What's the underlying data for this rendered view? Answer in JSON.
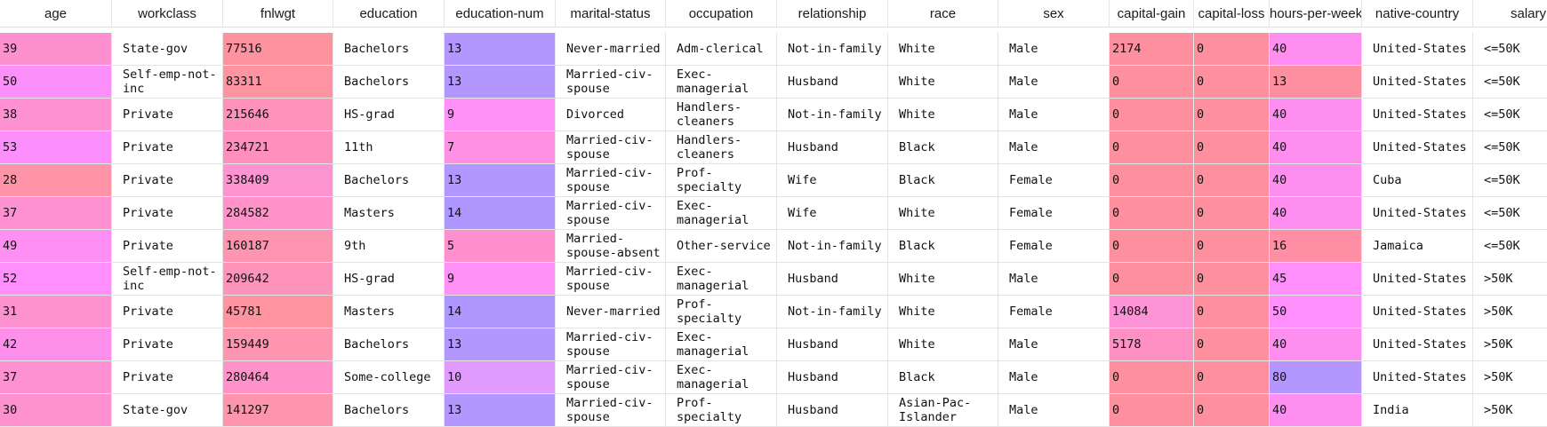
{
  "columns": [
    "age",
    "workclass",
    "fnlwgt",
    "education",
    "education-num",
    "marital-status",
    "occupation",
    "relationship",
    "race",
    "sex",
    "capital-gain",
    "capital-loss",
    "hours-per-week",
    "native-country",
    "salary"
  ],
  "numeric_columns": [
    "age",
    "fnlwgt",
    "education-num",
    "capital-gain",
    "capital-loss",
    "hours-per-week"
  ],
  "rows": [
    [
      "39",
      "State-gov",
      "77516",
      "Bachelors",
      "13",
      "Never-married",
      "Adm-clerical",
      "Not-in-family",
      "White",
      "Male",
      "2174",
      "0",
      "40",
      "United-States",
      "<=50K"
    ],
    [
      "50",
      "Self-emp-not-inc",
      "83311",
      "Bachelors",
      "13",
      "Married-civ-spouse",
      "Exec-managerial",
      "Husband",
      "White",
      "Male",
      "0",
      "0",
      "13",
      "United-States",
      "<=50K"
    ],
    [
      "38",
      "Private",
      "215646",
      "HS-grad",
      "9",
      "Divorced",
      "Handlers-cleaners",
      "Not-in-family",
      "White",
      "Male",
      "0",
      "0",
      "40",
      "United-States",
      "<=50K"
    ],
    [
      "53",
      "Private",
      "234721",
      "11th",
      "7",
      "Married-civ-spouse",
      "Handlers-cleaners",
      "Husband",
      "Black",
      "Male",
      "0",
      "0",
      "40",
      "United-States",
      "<=50K"
    ],
    [
      "28",
      "Private",
      "338409",
      "Bachelors",
      "13",
      "Married-civ-spouse",
      "Prof-specialty",
      "Wife",
      "Black",
      "Female",
      "0",
      "0",
      "40",
      "Cuba",
      "<=50K"
    ],
    [
      "37",
      "Private",
      "284582",
      "Masters",
      "14",
      "Married-civ-spouse",
      "Exec-managerial",
      "Wife",
      "White",
      "Female",
      "0",
      "0",
      "40",
      "United-States",
      "<=50K"
    ],
    [
      "49",
      "Private",
      "160187",
      "9th",
      "5",
      "Married-spouse-absent",
      "Other-service",
      "Not-in-family",
      "Black",
      "Female",
      "0",
      "0",
      "16",
      "Jamaica",
      "<=50K"
    ],
    [
      "52",
      "Self-emp-not-inc",
      "209642",
      "HS-grad",
      "9",
      "Married-civ-spouse",
      "Exec-managerial",
      "Husband",
      "White",
      "Male",
      "0",
      "0",
      "45",
      "United-States",
      ">50K"
    ],
    [
      "31",
      "Private",
      "45781",
      "Masters",
      "14",
      "Never-married",
      "Prof-specialty",
      "Not-in-family",
      "White",
      "Female",
      "14084",
      "0",
      "50",
      "United-States",
      ">50K"
    ],
    [
      "42",
      "Private",
      "159449",
      "Bachelors",
      "13",
      "Married-civ-spouse",
      "Exec-managerial",
      "Husband",
      "White",
      "Male",
      "5178",
      "0",
      "40",
      "United-States",
      ">50K"
    ],
    [
      "37",
      "Private",
      "280464",
      "Some-college",
      "10",
      "Married-civ-spouse",
      "Exec-managerial",
      "Husband",
      "Black",
      "Male",
      "0",
      "0",
      "80",
      "United-States",
      ">50K"
    ],
    [
      "30",
      "State-gov",
      "141297",
      "Bachelors",
      "13",
      "Married-civ-spouse",
      "Prof-specialty",
      "Husband",
      "Asian-Pac-Islander",
      "Male",
      "0",
      "0",
      "40",
      "India",
      ">50K"
    ]
  ],
  "cell_colors": [
    [
      "#fd91d0",
      null,
      "#fe93a0",
      null,
      "#b396fe",
      null,
      null,
      null,
      null,
      null,
      "#fe8f9f",
      "#fe8f9f",
      "#fe8ff0",
      null,
      null
    ],
    [
      "#fd8ffb",
      null,
      "#fe93a1",
      null,
      "#b396fe",
      null,
      null,
      null,
      null,
      null,
      "#fe8f9f",
      "#fe8f9f",
      "#fe8fa0",
      null,
      null
    ],
    [
      "#fe91d1",
      null,
      "#fe92ba",
      null,
      "#ff90f5",
      null,
      null,
      null,
      null,
      null,
      "#fe8f9f",
      "#fe8f9f",
      "#fe8ff0",
      null,
      null
    ],
    [
      "#fc8ffc",
      null,
      "#ff90be",
      null,
      "#ff90e3",
      null,
      null,
      null,
      null,
      null,
      "#fe8f9f",
      "#fe8f9f",
      "#fe8ff0",
      null,
      null
    ],
    [
      "#ff93a7",
      null,
      "#fe93d2",
      null,
      "#b396fe",
      null,
      null,
      null,
      null,
      null,
      "#fe8f9f",
      "#fe8f9f",
      "#fe8ff0",
      null,
      null
    ],
    [
      "#fe91d2",
      null,
      "#ff93c9",
      null,
      "#ad96fe",
      null,
      null,
      null,
      null,
      null,
      "#fe8f9f",
      "#fe8f9f",
      "#fe8ff0",
      null,
      null
    ],
    [
      "#ff8ff2",
      null,
      "#fd95b0",
      null,
      "#ff90cf",
      null,
      null,
      null,
      null,
      null,
      "#fe8f9f",
      "#fe8f9f",
      "#fe8fa4",
      null,
      null
    ],
    [
      "#fe8ffc",
      null,
      "#fe94bc",
      null,
      "#ff90f5",
      null,
      null,
      null,
      null,
      null,
      "#fe8f9f",
      "#fe8f9f",
      "#ff90fb",
      null,
      null
    ],
    [
      "#fe91cf",
      null,
      "#ff94a0",
      null,
      "#ad96fe",
      null,
      null,
      null,
      null,
      null,
      "#ff93d8",
      "#fe8f9f",
      "#fe8ffc",
      null,
      null
    ],
    [
      "#fe8feb",
      null,
      "#fe96b0",
      null,
      "#b396fe",
      null,
      null,
      null,
      null,
      null,
      "#ff90c3",
      "#fe8f9f",
      "#fe8ff0",
      null,
      null
    ],
    [
      "#fe91d2",
      null,
      "#ff93c9",
      null,
      "#e19bff",
      null,
      null,
      null,
      null,
      null,
      "#fe8f9f",
      "#fe8f9f",
      "#b396fe",
      null,
      null
    ],
    [
      "#fe91d0",
      null,
      "#fe95ad",
      null,
      "#b396fe",
      null,
      null,
      null,
      null,
      null,
      "#fe8f9f",
      "#fe8f9f",
      "#fe8ff0",
      null,
      null
    ]
  ]
}
